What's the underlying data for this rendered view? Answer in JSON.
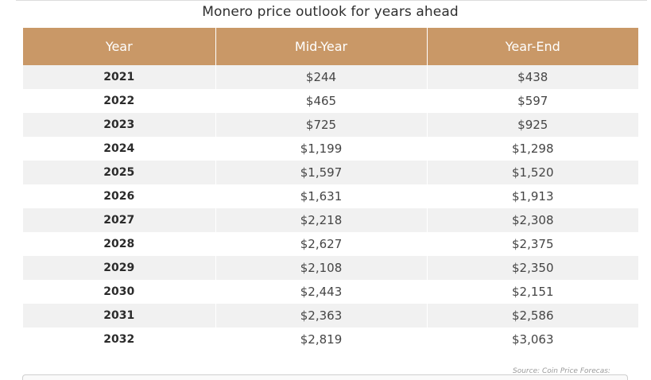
{
  "title": "Monero price outlook for years ahead",
  "table": {
    "headers": [
      "Year",
      "Mid-Year",
      "Year-End"
    ],
    "rows": [
      [
        "2021",
        "$244",
        "$438"
      ],
      [
        "2022",
        "$465",
        "$597"
      ],
      [
        "2023",
        "$725",
        "$925"
      ],
      [
        "2024",
        "$1,199",
        "$1,298"
      ],
      [
        "2025",
        "$1,597",
        "$1,520"
      ],
      [
        "2026",
        "$1,631",
        "$1,913"
      ],
      [
        "2027",
        "$2,218",
        "$2,308"
      ],
      [
        "2028",
        "$2,627",
        "$2,375"
      ],
      [
        "2029",
        "$2,108",
        "$2,350"
      ],
      [
        "2030",
        "$2,443",
        "$2,151"
      ],
      [
        "2031",
        "$2,363",
        "$2,586"
      ],
      [
        "2032",
        "$2,819",
        "$3,063"
      ]
    ]
  },
  "source": "Source: Coin Price Forecas:",
  "colors": {
    "header_bg": "#c99867",
    "stripe_bg": "#f1f1f1"
  }
}
